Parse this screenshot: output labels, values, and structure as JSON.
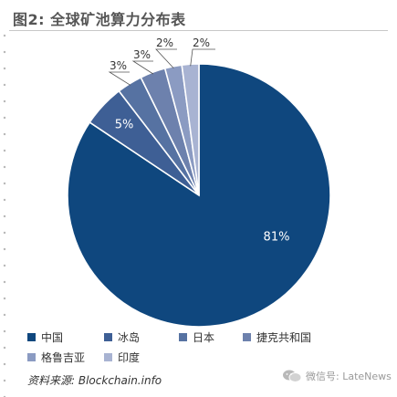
{
  "title": "图2: 全球矿池算力分布表",
  "source": "资料来源: Blockchain.info",
  "watermark": "微信号: LateNews",
  "chart_data": {
    "type": "pie",
    "title": "图2: 全球矿池算力分布表",
    "legend_position": "bottom",
    "slices": [
      {
        "label": "中国",
        "value": 81,
        "display": "81%",
        "color": "#0f477e"
      },
      {
        "label": "冰岛",
        "value": 5,
        "display": "5%",
        "color": "#3e5f95"
      },
      {
        "label": "日本",
        "value": 3,
        "display": "3%",
        "color": "#5672a2"
      },
      {
        "label": "捷克共和国",
        "value": 3,
        "display": "3%",
        "color": "#6d81ad"
      },
      {
        "label": "格鲁吉亚",
        "value": 2,
        "display": "2%",
        "color": "#8b9bc2"
      },
      {
        "label": "印度",
        "value": 2,
        "display": "2%",
        "color": "#a8b3d2"
      }
    ]
  }
}
